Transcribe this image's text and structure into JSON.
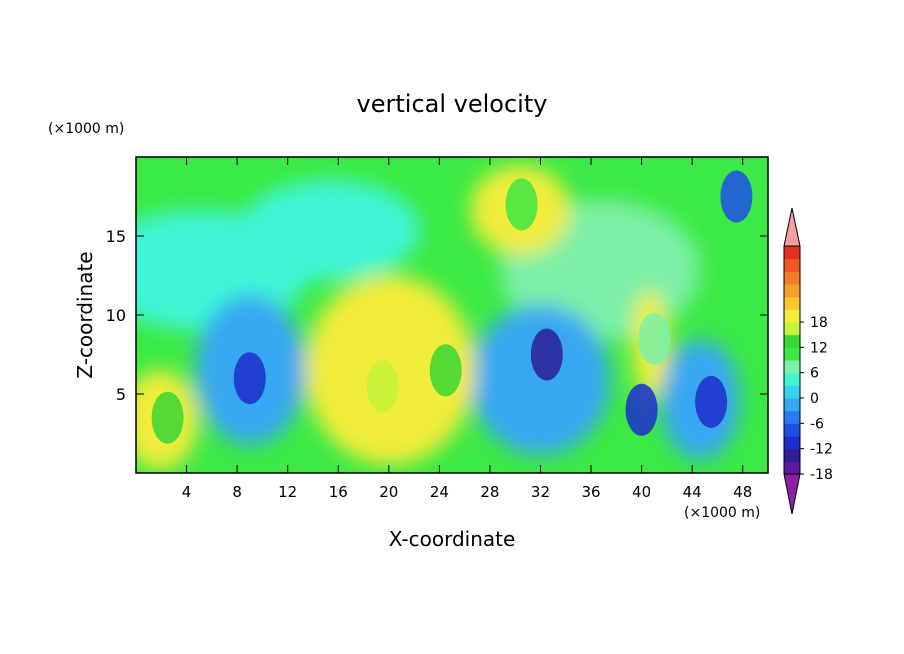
{
  "chart_data": {
    "type": "heatmap",
    "title": "vertical velocity",
    "xlabel": "X-coordinate",
    "ylabel": "Z-coordinate",
    "x_unit": "(×1000 m)",
    "y_unit": "(×1000 m)",
    "xlim": [
      0,
      50
    ],
    "ylim": [
      0,
      20
    ],
    "x_ticks": [
      4,
      8,
      12,
      16,
      20,
      24,
      28,
      32,
      36,
      40,
      44,
      48
    ],
    "y_ticks": [
      5,
      10,
      15
    ],
    "grid": false,
    "colorbar": {
      "placement": "right",
      "tick_labels": [
        "18",
        "12",
        "6",
        "0",
        "-6",
        "-12",
        "-18"
      ],
      "tick_values": [
        18,
        12,
        6,
        0,
        -6,
        -12,
        -18
      ],
      "levels_min": -21,
      "levels_max": 21,
      "level_step": 3,
      "colors": [
        "#8e1fa6",
        "#5a1ba0",
        "#2d1e96",
        "#1c2ecc",
        "#1f50e6",
        "#2a7af5",
        "#37a7f2",
        "#33d2ee",
        "#3ff5d6",
        "#7cf0a8",
        "#3ee844",
        "#39d733",
        "#c6f23a",
        "#f2ec3a",
        "#f7c52e",
        "#f5a02b",
        "#f27c28",
        "#ee5622",
        "#e83020",
        "#f5a0a0"
      ]
    },
    "features": [
      {
        "x": 2.5,
        "z": 3.5,
        "value": 12
      },
      {
        "x": 9.0,
        "z": 6.0,
        "value": -12
      },
      {
        "x": 19.5,
        "z": 5.5,
        "value": 15
      },
      {
        "x": 24.5,
        "z": 6.5,
        "value": 12
      },
      {
        "x": 30.5,
        "z": 17.0,
        "value": 9
      },
      {
        "x": 32.5,
        "z": 7.5,
        "value": -15
      },
      {
        "x": 40.0,
        "z": 4.0,
        "value": -12
      },
      {
        "x": 41.0,
        "z": 8.5,
        "value": 6
      },
      {
        "x": 45.5,
        "z": 4.5,
        "value": -12
      },
      {
        "x": 47.5,
        "z": 17.5,
        "value": -9
      }
    ]
  }
}
